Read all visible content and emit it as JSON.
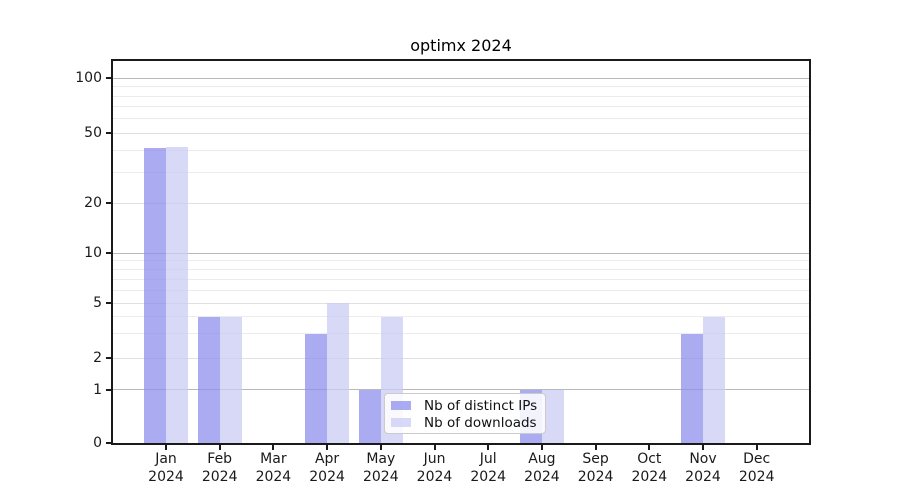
{
  "chart_data": {
    "type": "bar",
    "title": "optimx 2024",
    "categories": [
      "Jan 2024",
      "Feb 2024",
      "Mar 2024",
      "Apr 2024",
      "May 2024",
      "Jun 2024",
      "Jul 2024",
      "Aug 2024",
      "Sep 2024",
      "Oct 2024",
      "Nov 2024",
      "Dec 2024"
    ],
    "series": [
      {
        "name": "Nb of distinct IPs",
        "color": "#8f8fee",
        "values": [
          41,
          4,
          0,
          3,
          1,
          0,
          0,
          1,
          0,
          0,
          3,
          0
        ]
      },
      {
        "name": "Nb of downloads",
        "color": "#cbcbf4",
        "values": [
          42,
          4,
          0,
          5,
          4,
          0,
          0,
          1,
          0,
          0,
          4,
          0
        ]
      }
    ],
    "y_axis": {
      "scale": "log1p",
      "ticks": [
        0,
        1,
        2,
        5,
        10,
        20,
        50,
        100
      ],
      "major_gridlines": [
        1,
        10,
        100
      ],
      "minor_gridlines": [
        3,
        4,
        6,
        7,
        8,
        9,
        30,
        40,
        60,
        70,
        80,
        90
      ],
      "range": [
        0,
        120
      ]
    },
    "xlabel": "",
    "ylabel": "",
    "grid": true,
    "legend": {
      "position": "lower center"
    }
  }
}
